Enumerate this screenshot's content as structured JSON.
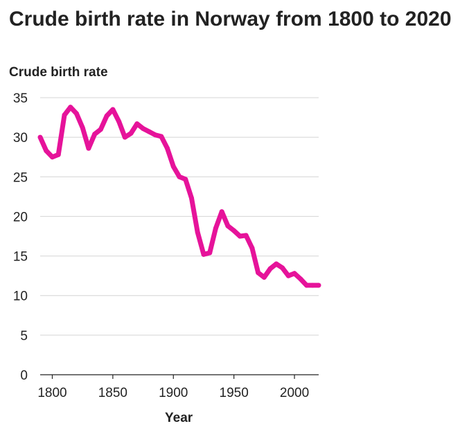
{
  "chart_data": {
    "type": "line",
    "title": "Crude birth rate in Norway from 1800 to 2020",
    "xlabel": "Year",
    "ylabel": "Crude birth rate",
    "xlim": [
      1790,
      2020
    ],
    "ylim": [
      0,
      35
    ],
    "x_ticks": [
      1800,
      1850,
      1900,
      1950,
      2000
    ],
    "y_ticks": [
      0,
      5,
      10,
      15,
      20,
      25,
      30,
      35
    ],
    "grid": "horizontal",
    "line_color": "#e6139a",
    "series": [
      {
        "x": [
          1790,
          1795,
          1800,
          1805,
          1810,
          1815,
          1820,
          1825,
          1830,
          1835,
          1840,
          1845,
          1850,
          1855,
          1860,
          1865,
          1870,
          1875,
          1880,
          1885,
          1890,
          1895,
          1900,
          1905,
          1910,
          1915,
          1920,
          1925,
          1930,
          1935,
          1940,
          1945,
          1950,
          1955,
          1960,
          1965,
          1970,
          1975,
          1980,
          1985,
          1990,
          1995,
          2000,
          2005,
          2010,
          2015,
          2020
        ],
        "y": [
          30.0,
          28.3,
          27.5,
          27.8,
          32.8,
          33.8,
          33.0,
          31.2,
          28.6,
          30.4,
          31.0,
          32.7,
          33.5,
          32.0,
          30.0,
          30.5,
          31.7,
          31.1,
          30.7,
          30.3,
          30.1,
          28.6,
          26.3,
          25.0,
          24.7,
          22.3,
          18.0,
          15.2,
          15.4,
          18.5,
          20.6,
          18.8,
          18.2,
          17.5,
          17.6,
          16.0,
          12.9,
          12.3,
          13.4,
          14.0,
          13.5,
          12.5,
          12.8,
          12.1,
          11.3,
          11.3,
          11.3
        ]
      }
    ]
  }
}
